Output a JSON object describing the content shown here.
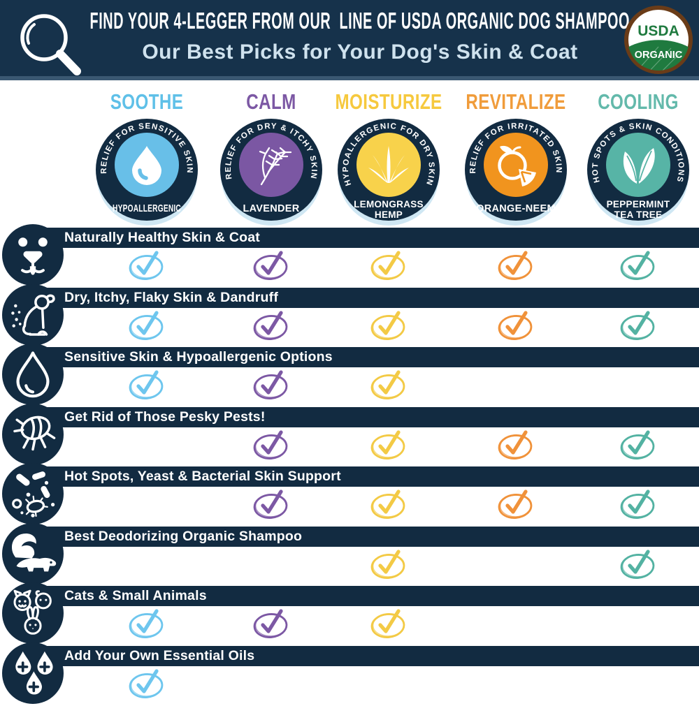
{
  "header": {
    "title": "FIND YOUR 4-LEGGER FROM OUR  LINE OF USDA ORGANIC DOG SHAMPOO",
    "subtitle": "Our Best Picks for Your Dog's Skin & Coat",
    "usda_seal": {
      "top": "USDA",
      "bottom": "ORGANIC"
    }
  },
  "colors": {
    "navy": "#122b41",
    "header_bg": "#16324b",
    "header_rule": "#3a5872",
    "subtitle": "#cfe2ee",
    "crescent": "#cfe7f3",
    "seal_green": "#1f7a3f",
    "seal_brown": "#6a3c18",
    "white": "#ffffff"
  },
  "columns": [
    {
      "label": "SOOTHE",
      "color": "#5fc0e8",
      "check_color": "#6ec6ee",
      "badge": {
        "arc_text": "RELIEF FOR SENSITIVE SKIN",
        "inner_color": "#68bfe8",
        "icon": "water-drop",
        "product_lines": [
          "HYPOALLERGENIC"
        ]
      }
    },
    {
      "label": "CALM",
      "color": "#7c58a4",
      "check_color": "#7c58a4",
      "badge": {
        "arc_text": "RELIEF FOR DRY & ITCHY SKIN",
        "inner_color": "#7b57a3",
        "icon": "lavender",
        "product_lines": [
          "LAVENDER"
        ]
      }
    },
    {
      "label": "MOISTURIZE",
      "color": "#f6c93e",
      "check_color": "#f3ca45",
      "badge": {
        "arc_text": "HYPOALLERGENIC FOR DRY SKIN",
        "inner_color": "#f8d24b",
        "icon": "lemongrass",
        "product_lines": [
          "LEMONGRASS",
          "HEMP"
        ]
      }
    },
    {
      "label": "REVITALIZE",
      "color": "#f09c3b",
      "check_color": "#f0923a",
      "badge": {
        "arc_text": "RELIEF FOR IRRITATED SKIN",
        "inner_color": "#f1941e",
        "icon": "orange",
        "product_lines": [
          "ORANGE-NEEM"
        ]
      }
    },
    {
      "label": "COOLING",
      "color": "#63b9ab",
      "check_color": "#53b2a2",
      "badge": {
        "arc_text": "HOT SPOTS & SKIN CONDITIONS",
        "inner_color": "#57b4a6",
        "icon": "mint",
        "product_lines": [
          "PEPPERMINT",
          "TEA TREE"
        ]
      }
    }
  ],
  "rows": [
    {
      "label": "Naturally Healthy Skin & Coat",
      "icon": "dog-face",
      "checks": [
        true,
        true,
        true,
        true,
        true
      ]
    },
    {
      "label": "Dry, Itchy, Flaky Skin & Dandruff",
      "icon": "itchy-dog",
      "checks": [
        true,
        true,
        true,
        true,
        true
      ]
    },
    {
      "label": "Sensitive Skin & Hypoallergenic Options",
      "icon": "water-drop",
      "checks": [
        true,
        true,
        true,
        false,
        false
      ]
    },
    {
      "label": "Get Rid of Those Pesky Pests!",
      "icon": "flea",
      "checks": [
        false,
        true,
        true,
        true,
        true
      ]
    },
    {
      "label": "Hot Spots, Yeast & Bacterial Skin Support",
      "icon": "bacteria",
      "checks": [
        false,
        true,
        true,
        true,
        true
      ]
    },
    {
      "label": "Best Deodorizing Organic Shampoo",
      "icon": "skunk",
      "checks": [
        false,
        false,
        true,
        false,
        true
      ]
    },
    {
      "label": "Cats & Small Animals",
      "icon": "small-animals",
      "checks": [
        true,
        true,
        true,
        false,
        false
      ]
    },
    {
      "label": "Add Your Own Essential Oils",
      "icon": "essential-oils",
      "checks": [
        true,
        false,
        false,
        false,
        false
      ]
    }
  ],
  "chart_data": {
    "type": "table",
    "title": "FIND YOUR 4-LEGGER FROM OUR LINE OF USDA ORGANIC DOG SHAMPOO",
    "subtitle": "Our Best Picks for Your Dog's Skin & Coat",
    "columns": [
      "SOOTHE (HYPOALLERGENIC - Relief for Sensitive Skin)",
      "CALM (LAVENDER - Relief for Dry & Itchy Skin)",
      "MOISTURIZE (LEMONGRASS HEMP - Hypoallergenic for Dry Skin)",
      "REVITALIZE (ORANGE-NEEM - Relief for Irritated Skin)",
      "COOLING (PEPPERMINT TEA TREE - Hot Spots & Skin Conditions)"
    ],
    "rows": [
      "Naturally Healthy Skin & Coat",
      "Dry, Itchy, Flaky Skin & Dandruff",
      "Sensitive Skin & Hypoallergenic Options",
      "Get Rid of Those Pesky Pests!",
      "Hot Spots, Yeast & Bacterial Skin Support",
      "Best Deodorizing Organic Shampoo",
      "Cats & Small Animals",
      "Add Your Own Essential Oils"
    ],
    "matrix": [
      [
        1,
        1,
        1,
        1,
        1
      ],
      [
        1,
        1,
        1,
        1,
        1
      ],
      [
        1,
        1,
        1,
        0,
        0
      ],
      [
        0,
        1,
        1,
        1,
        1
      ],
      [
        0,
        1,
        1,
        1,
        1
      ],
      [
        0,
        0,
        1,
        0,
        1
      ],
      [
        1,
        1,
        1,
        0,
        0
      ],
      [
        1,
        0,
        0,
        0,
        0
      ]
    ],
    "legend_position": "top",
    "grid": false
  }
}
